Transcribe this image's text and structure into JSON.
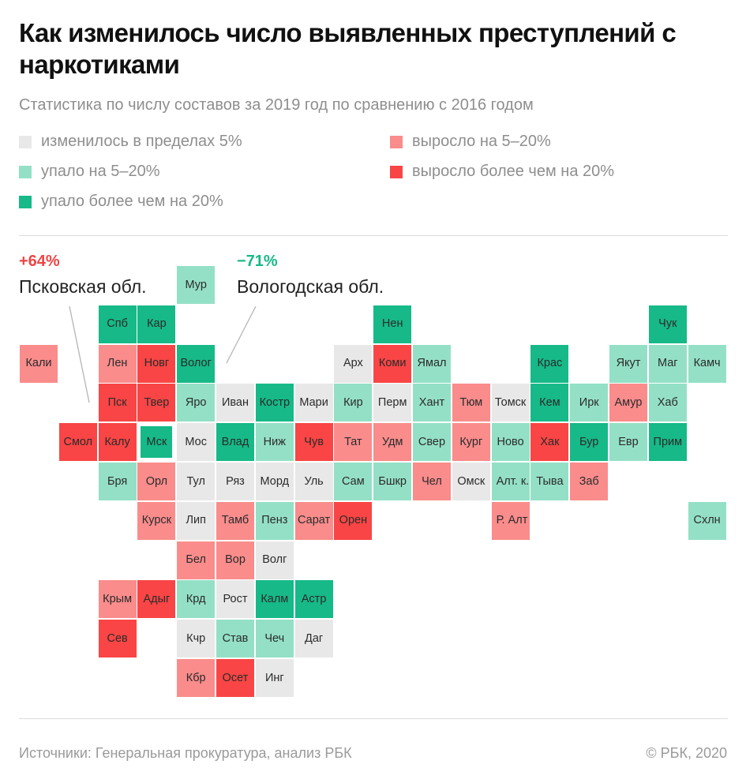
{
  "header": {
    "title": "Как изменилось число выявленных преступлений с наркотиками",
    "subtitle": "Статистика по числу составов за 2019 год по сравнению с 2016 годом"
  },
  "legend": [
    {
      "key": "stable",
      "label": "изменилось в пределах 5%",
      "color": "#e8e8e8"
    },
    {
      "key": "up_mod",
      "label": "выросло на 5–20%",
      "color": "#fa8c8c"
    },
    {
      "key": "down_mod",
      "label": "упало на 5–20%",
      "color": "#94e0c6"
    },
    {
      "key": "up_big",
      "label": "выросло более чем на 20%",
      "color": "#f94545"
    },
    {
      "key": "down_big",
      "label": "упало более чем на 20%",
      "color": "#16b987"
    }
  ],
  "annotations": [
    {
      "value": "+64%",
      "region": "Псковская обл.",
      "color": "#ef4444"
    },
    {
      "value": "−71%",
      "region": "Вологодская обл.",
      "color": "#16b987"
    }
  ],
  "chart_data": {
    "type": "heatmap",
    "title": "Как изменилось число выявленных преступлений с наркотиками",
    "subtitle": "Статистика по числу составов за 2019 год по сравнению с 2016 годом",
    "layout": "tile-grid map of Russian regions",
    "categories": {
      "stable": "изменилось в пределах 5%",
      "up_mod": "выросло на 5–20%",
      "down_mod": "упало на 5–20%",
      "up_big": "выросло более чем на 20%",
      "down_big": "упало более чем на 20%"
    },
    "regions": [
      {
        "label": "Мур",
        "row": 0,
        "col": 4,
        "cat": "down_mod"
      },
      {
        "label": "Спб",
        "row": 1,
        "col": 2,
        "cat": "down_big"
      },
      {
        "label": "Кар",
        "row": 1,
        "col": 3,
        "cat": "down_big"
      },
      {
        "label": "Нен",
        "row": 1,
        "col": 9,
        "cat": "down_big"
      },
      {
        "label": "Чук",
        "row": 1,
        "col": 16,
        "cat": "down_big"
      },
      {
        "label": "Кали",
        "row": 2,
        "col": 0,
        "cat": "up_mod"
      },
      {
        "label": "Лен",
        "row": 2,
        "col": 2,
        "cat": "up_mod"
      },
      {
        "label": "Новг",
        "row": 2,
        "col": 3,
        "cat": "up_big"
      },
      {
        "label": "Волог",
        "row": 2,
        "col": 4,
        "cat": "down_big"
      },
      {
        "label": "Арх",
        "row": 2,
        "col": 8,
        "cat": "stable"
      },
      {
        "label": "Коми",
        "row": 2,
        "col": 9,
        "cat": "up_big"
      },
      {
        "label": "Ямал",
        "row": 2,
        "col": 10,
        "cat": "down_mod"
      },
      {
        "label": "Крас",
        "row": 2,
        "col": 13,
        "cat": "down_big"
      },
      {
        "label": "Якут",
        "row": 2,
        "col": 15,
        "cat": "down_mod"
      },
      {
        "label": "Маг",
        "row": 2,
        "col": 16,
        "cat": "down_mod"
      },
      {
        "label": "Камч",
        "row": 2,
        "col": 17,
        "cat": "down_mod"
      },
      {
        "label": "Пск",
        "row": 3,
        "col": 2,
        "cat": "up_big"
      },
      {
        "label": "Твер",
        "row": 3,
        "col": 3,
        "cat": "up_big"
      },
      {
        "label": "Яро",
        "row": 3,
        "col": 4,
        "cat": "down_mod"
      },
      {
        "label": "Иван",
        "row": 3,
        "col": 5,
        "cat": "stable"
      },
      {
        "label": "Костр",
        "row": 3,
        "col": 6,
        "cat": "down_big"
      },
      {
        "label": "Мари",
        "row": 3,
        "col": 7,
        "cat": "stable"
      },
      {
        "label": "Кир",
        "row": 3,
        "col": 8,
        "cat": "down_mod"
      },
      {
        "label": "Перм",
        "row": 3,
        "col": 9,
        "cat": "stable"
      },
      {
        "label": "Хант",
        "row": 3,
        "col": 10,
        "cat": "down_mod"
      },
      {
        "label": "Тюм",
        "row": 3,
        "col": 11,
        "cat": "up_mod"
      },
      {
        "label": "Томск",
        "row": 3,
        "col": 12,
        "cat": "stable"
      },
      {
        "label": "Кем",
        "row": 3,
        "col": 13,
        "cat": "down_big"
      },
      {
        "label": "Ирк",
        "row": 3,
        "col": 14,
        "cat": "down_mod"
      },
      {
        "label": "Амур",
        "row": 3,
        "col": 15,
        "cat": "up_mod"
      },
      {
        "label": "Хаб",
        "row": 3,
        "col": 16,
        "cat": "down_mod"
      },
      {
        "label": "Смол",
        "row": 4,
        "col": 1,
        "cat": "up_big"
      },
      {
        "label": "Калу",
        "row": 4,
        "col": 2,
        "cat": "up_big"
      },
      {
        "label": "Мск",
        "row": 4,
        "col": 3,
        "cat": "down_big",
        "framed": true
      },
      {
        "label": "Мос",
        "row": 4,
        "col": 4,
        "cat": "stable"
      },
      {
        "label": "Влад",
        "row": 4,
        "col": 5,
        "cat": "down_big"
      },
      {
        "label": "Ниж",
        "row": 4,
        "col": 6,
        "cat": "down_mod"
      },
      {
        "label": "Чув",
        "row": 4,
        "col": 7,
        "cat": "up_big"
      },
      {
        "label": "Тат",
        "row": 4,
        "col": 8,
        "cat": "up_mod"
      },
      {
        "label": "Удм",
        "row": 4,
        "col": 9,
        "cat": "up_mod"
      },
      {
        "label": "Свер",
        "row": 4,
        "col": 10,
        "cat": "down_mod"
      },
      {
        "label": "Кург",
        "row": 4,
        "col": 11,
        "cat": "up_mod"
      },
      {
        "label": "Ново",
        "row": 4,
        "col": 12,
        "cat": "down_mod"
      },
      {
        "label": "Хак",
        "row": 4,
        "col": 13,
        "cat": "up_big"
      },
      {
        "label": "Бур",
        "row": 4,
        "col": 14,
        "cat": "down_big"
      },
      {
        "label": "Евр",
        "row": 4,
        "col": 15,
        "cat": "down_mod"
      },
      {
        "label": "Прим",
        "row": 4,
        "col": 16,
        "cat": "down_big"
      },
      {
        "label": "Бря",
        "row": 5,
        "col": 2,
        "cat": "down_mod"
      },
      {
        "label": "Орл",
        "row": 5,
        "col": 3,
        "cat": "up_mod"
      },
      {
        "label": "Тул",
        "row": 5,
        "col": 4,
        "cat": "stable"
      },
      {
        "label": "Ряз",
        "row": 5,
        "col": 5,
        "cat": "stable"
      },
      {
        "label": "Морд",
        "row": 5,
        "col": 6,
        "cat": "stable"
      },
      {
        "label": "Уль",
        "row": 5,
        "col": 7,
        "cat": "stable"
      },
      {
        "label": "Сам",
        "row": 5,
        "col": 8,
        "cat": "down_mod"
      },
      {
        "label": "Бшкр",
        "row": 5,
        "col": 9,
        "cat": "down_mod"
      },
      {
        "label": "Чел",
        "row": 5,
        "col": 10,
        "cat": "up_mod"
      },
      {
        "label": "Омск",
        "row": 5,
        "col": 11,
        "cat": "stable"
      },
      {
        "label": "Алт. к.",
        "row": 5,
        "col": 12,
        "cat": "down_mod",
        "wrap": true
      },
      {
        "label": "Тыва",
        "row": 5,
        "col": 13,
        "cat": "down_mod"
      },
      {
        "label": "Заб",
        "row": 5,
        "col": 14,
        "cat": "up_mod"
      },
      {
        "label": "Курск",
        "row": 6,
        "col": 3,
        "cat": "up_mod"
      },
      {
        "label": "Лип",
        "row": 6,
        "col": 4,
        "cat": "stable"
      },
      {
        "label": "Тамб",
        "row": 6,
        "col": 5,
        "cat": "up_mod"
      },
      {
        "label": "Пенз",
        "row": 6,
        "col": 6,
        "cat": "down_mod"
      },
      {
        "label": "Сарат",
        "row": 6,
        "col": 7,
        "cat": "up_mod"
      },
      {
        "label": "Орен",
        "row": 6,
        "col": 8,
        "cat": "up_big"
      },
      {
        "label": "Р. Алт",
        "row": 6,
        "col": 12,
        "cat": "up_mod",
        "wrap": true
      },
      {
        "label": "Схлн",
        "row": 6,
        "col": 17,
        "cat": "down_mod"
      },
      {
        "label": "Бел",
        "row": 7,
        "col": 4,
        "cat": "up_mod"
      },
      {
        "label": "Вор",
        "row": 7,
        "col": 5,
        "cat": "up_mod"
      },
      {
        "label": "Волг",
        "row": 7,
        "col": 6,
        "cat": "stable"
      },
      {
        "label": "Крым",
        "row": 8,
        "col": 2,
        "cat": "up_mod"
      },
      {
        "label": "Адыг",
        "row": 8,
        "col": 3,
        "cat": "up_big"
      },
      {
        "label": "Крд",
        "row": 8,
        "col": 4,
        "cat": "down_mod"
      },
      {
        "label": "Рост",
        "row": 8,
        "col": 5,
        "cat": "stable"
      },
      {
        "label": "Калм",
        "row": 8,
        "col": 6,
        "cat": "down_big"
      },
      {
        "label": "Астр",
        "row": 8,
        "col": 7,
        "cat": "down_big"
      },
      {
        "label": "Сев",
        "row": 9,
        "col": 2,
        "cat": "up_big"
      },
      {
        "label": "Кчр",
        "row": 9,
        "col": 4,
        "cat": "stable"
      },
      {
        "label": "Став",
        "row": 9,
        "col": 5,
        "cat": "down_mod"
      },
      {
        "label": "Чеч",
        "row": 9,
        "col": 6,
        "cat": "down_mod"
      },
      {
        "label": "Даг",
        "row": 9,
        "col": 7,
        "cat": "stable"
      },
      {
        "label": "Кбр",
        "row": 10,
        "col": 4,
        "cat": "up_mod"
      },
      {
        "label": "Осет",
        "row": 10,
        "col": 5,
        "cat": "up_big"
      },
      {
        "label": "Инг",
        "row": 10,
        "col": 6,
        "cat": "stable"
      }
    ]
  },
  "footer": {
    "source": "Источники: Генеральная прокуратура, анализ РБК",
    "copyright": "© РБК, 2020"
  }
}
